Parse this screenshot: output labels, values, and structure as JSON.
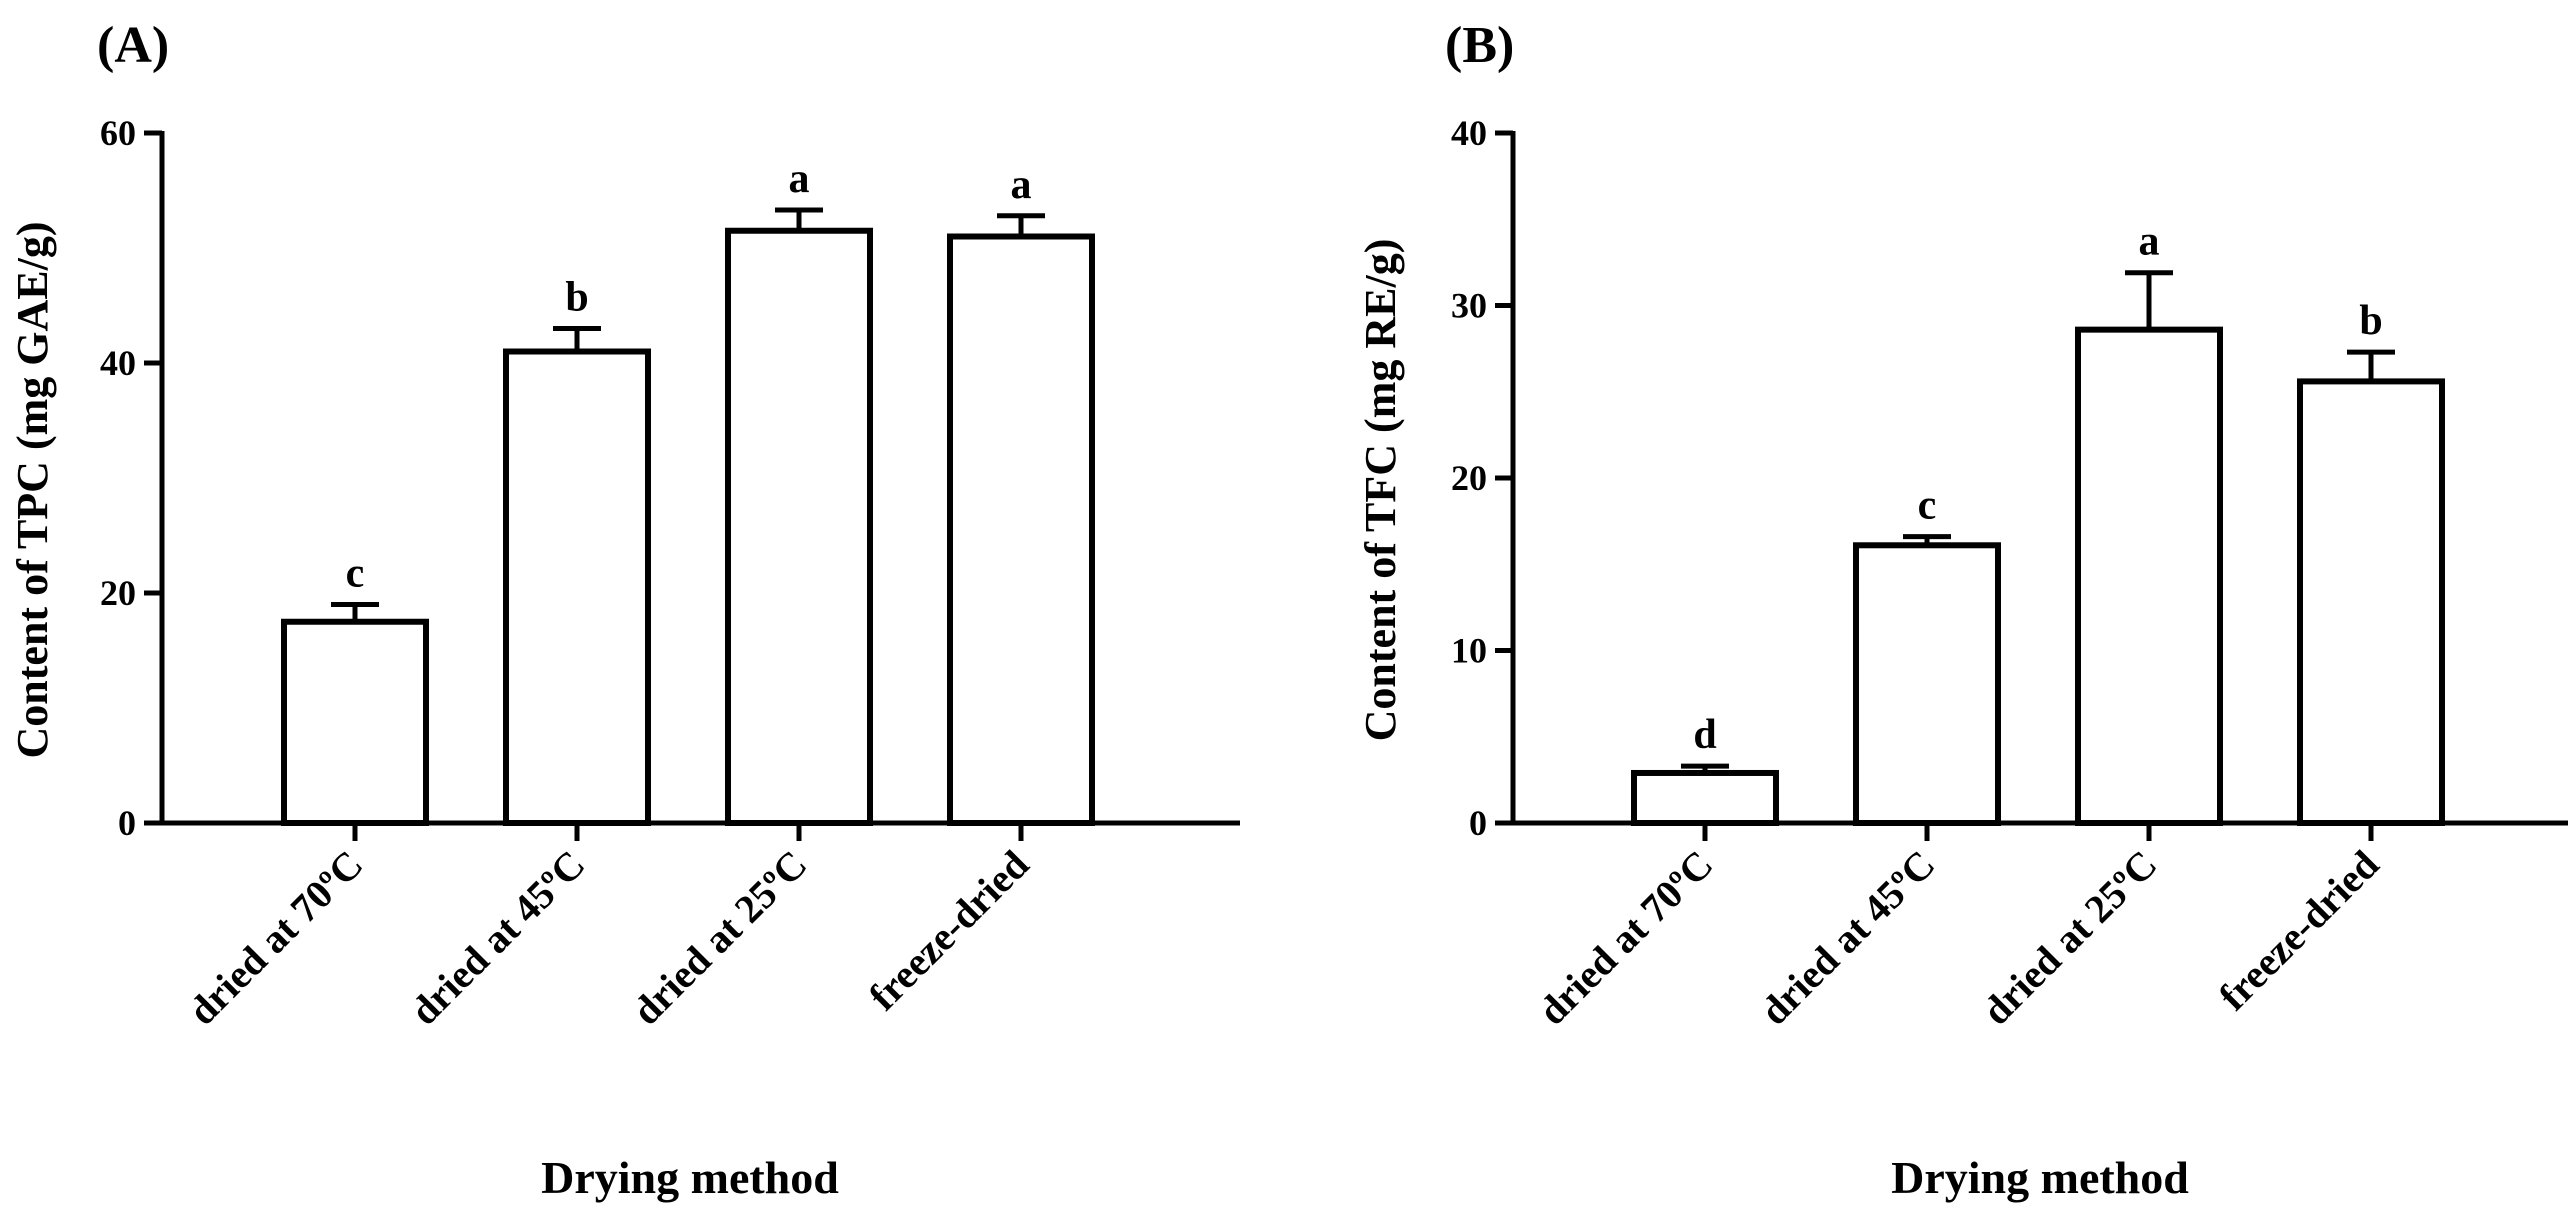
{
  "chart_data": [
    {
      "type": "bar",
      "panel_label": "(A)",
      "categories": [
        "dried at 70ºC",
        "dried at 45ºC",
        "dried at 25ºC",
        "freeze-dried"
      ],
      "values": [
        17.5,
        41,
        51.5,
        51
      ],
      "errors": [
        1.5,
        2,
        1.8,
        1.8
      ],
      "significance": [
        "c",
        "b",
        "a",
        "a"
      ],
      "ylim": [
        0,
        60
      ],
      "yticks": [
        0,
        20,
        40,
        60
      ],
      "ylabel": "Content of TPC (mg GAE/g)",
      "xlabel": "Drying method"
    },
    {
      "type": "bar",
      "panel_label": "(B)",
      "categories": [
        "dried at 70ºC",
        "dried at 45ºC",
        "dried at 25ºC",
        "freeze-dried"
      ],
      "values": [
        2.9,
        16.1,
        28.6,
        25.6
      ],
      "errors": [
        0.4,
        0.5,
        3.3,
        1.7
      ],
      "significance": [
        "d",
        "c",
        "a",
        "b"
      ],
      "ylim": [
        0,
        40
      ],
      "yticks": [
        0,
        10,
        20,
        30,
        40
      ],
      "ylabel": "Content of TFC (mg RE/g)",
      "xlabel": "Drying method"
    }
  ],
  "colors": {
    "bar_fill": "#ffffff",
    "stroke": "#000000"
  }
}
